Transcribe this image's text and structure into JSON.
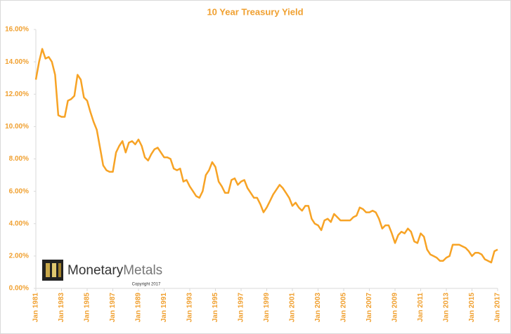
{
  "chart_data": {
    "type": "line",
    "title": "10 Year Treasury Yield",
    "categories": [
      "Jan 1981",
      null,
      null,
      null,
      null,
      null,
      null,
      null,
      "Jan 1983",
      null,
      null,
      null,
      null,
      null,
      null,
      null,
      "Jan 1985",
      null,
      null,
      null,
      null,
      null,
      null,
      null,
      "Jan 1987",
      null,
      null,
      null,
      null,
      null,
      null,
      null,
      "Jan 1989",
      null,
      null,
      null,
      null,
      null,
      null,
      null,
      "Jan 1991",
      null,
      null,
      null,
      null,
      null,
      null,
      null,
      "Jan 1993",
      null,
      null,
      null,
      null,
      null,
      null,
      null,
      "Jan 1995",
      null,
      null,
      null,
      null,
      null,
      null,
      null,
      "Jan 1997",
      null,
      null,
      null,
      null,
      null,
      null,
      null,
      "Jan 1999",
      null,
      null,
      null,
      null,
      null,
      null,
      null,
      "Jan 2001",
      null,
      null,
      null,
      null,
      null,
      null,
      null,
      "Jan 2003",
      null,
      null,
      null,
      null,
      null,
      null,
      null,
      "Jan 2005",
      null,
      null,
      null,
      null,
      null,
      null,
      null,
      "Jan 2007",
      null,
      null,
      null,
      null,
      null,
      null,
      null,
      "Jan 2009",
      null,
      null,
      null,
      null,
      null,
      null,
      null,
      "Jan 2011",
      null,
      null,
      null,
      null,
      null,
      null,
      null,
      "Jan 2013",
      null,
      null,
      null,
      null,
      null,
      null,
      null,
      "Jan 2015",
      null,
      null,
      null,
      null,
      null,
      null,
      null,
      "Jan 2017"
    ],
    "values": [
      12.9,
      14.0,
      14.8,
      14.2,
      14.3,
      14.0,
      13.2,
      10.7,
      10.6,
      10.6,
      11.6,
      11.7,
      11.9,
      13.2,
      12.9,
      11.8,
      11.6,
      10.9,
      10.3,
      9.8,
      8.7,
      7.6,
      7.3,
      7.2,
      7.2,
      8.4,
      8.8,
      9.1,
      8.4,
      9.0,
      9.1,
      8.9,
      9.2,
      8.8,
      8.1,
      7.9,
      8.3,
      8.6,
      8.7,
      8.4,
      8.1,
      8.1,
      8.0,
      7.4,
      7.3,
      7.4,
      6.6,
      6.7,
      6.3,
      6.0,
      5.7,
      5.6,
      6.0,
      7.0,
      7.3,
      7.8,
      7.5,
      6.6,
      6.3,
      5.9,
      5.9,
      6.7,
      6.8,
      6.4,
      6.6,
      6.7,
      6.2,
      5.9,
      5.6,
      5.6,
      5.2,
      4.7,
      5.0,
      5.4,
      5.8,
      6.1,
      6.4,
      6.2,
      5.9,
      5.6,
      5.1,
      5.3,
      5.0,
      4.8,
      5.1,
      5.1,
      4.3,
      4.0,
      3.9,
      3.6,
      4.2,
      4.3,
      4.1,
      4.6,
      4.4,
      4.2,
      4.2,
      4.2,
      4.2,
      4.4,
      4.5,
      5.0,
      4.9,
      4.7,
      4.7,
      4.8,
      4.7,
      4.3,
      3.7,
      3.9,
      3.9,
      3.4,
      2.8,
      3.3,
      3.5,
      3.4,
      3.7,
      3.5,
      2.9,
      2.8,
      3.4,
      3.2,
      2.4,
      2.1,
      2.0,
      1.9,
      1.7,
      1.7,
      1.9,
      2.0,
      2.7,
      2.7,
      2.7,
      2.6,
      2.5,
      2.3,
      2.0,
      2.2,
      2.2,
      2.1,
      1.8,
      1.7,
      1.6,
      2.3,
      2.4
    ],
    "color": "#f7a325",
    "ylim": [
      0,
      16
    ],
    "yticks": [
      {
        "value": 0,
        "label": "0.00%"
      },
      {
        "value": 2,
        "label": "2.00%"
      },
      {
        "value": 4,
        "label": "4.00%"
      },
      {
        "value": 6,
        "label": "6.00%"
      },
      {
        "value": 8,
        "label": "8.00%"
      },
      {
        "value": 10,
        "label": "10.00%"
      },
      {
        "value": 12,
        "label": "12.00%"
      },
      {
        "value": 14,
        "label": "14.00%"
      },
      {
        "value": 16,
        "label": "16.00%"
      }
    ],
    "grid": false,
    "logo": {
      "name1": "Monetary",
      "name2": "Metals",
      "copyright": "Copyright 2017"
    }
  }
}
